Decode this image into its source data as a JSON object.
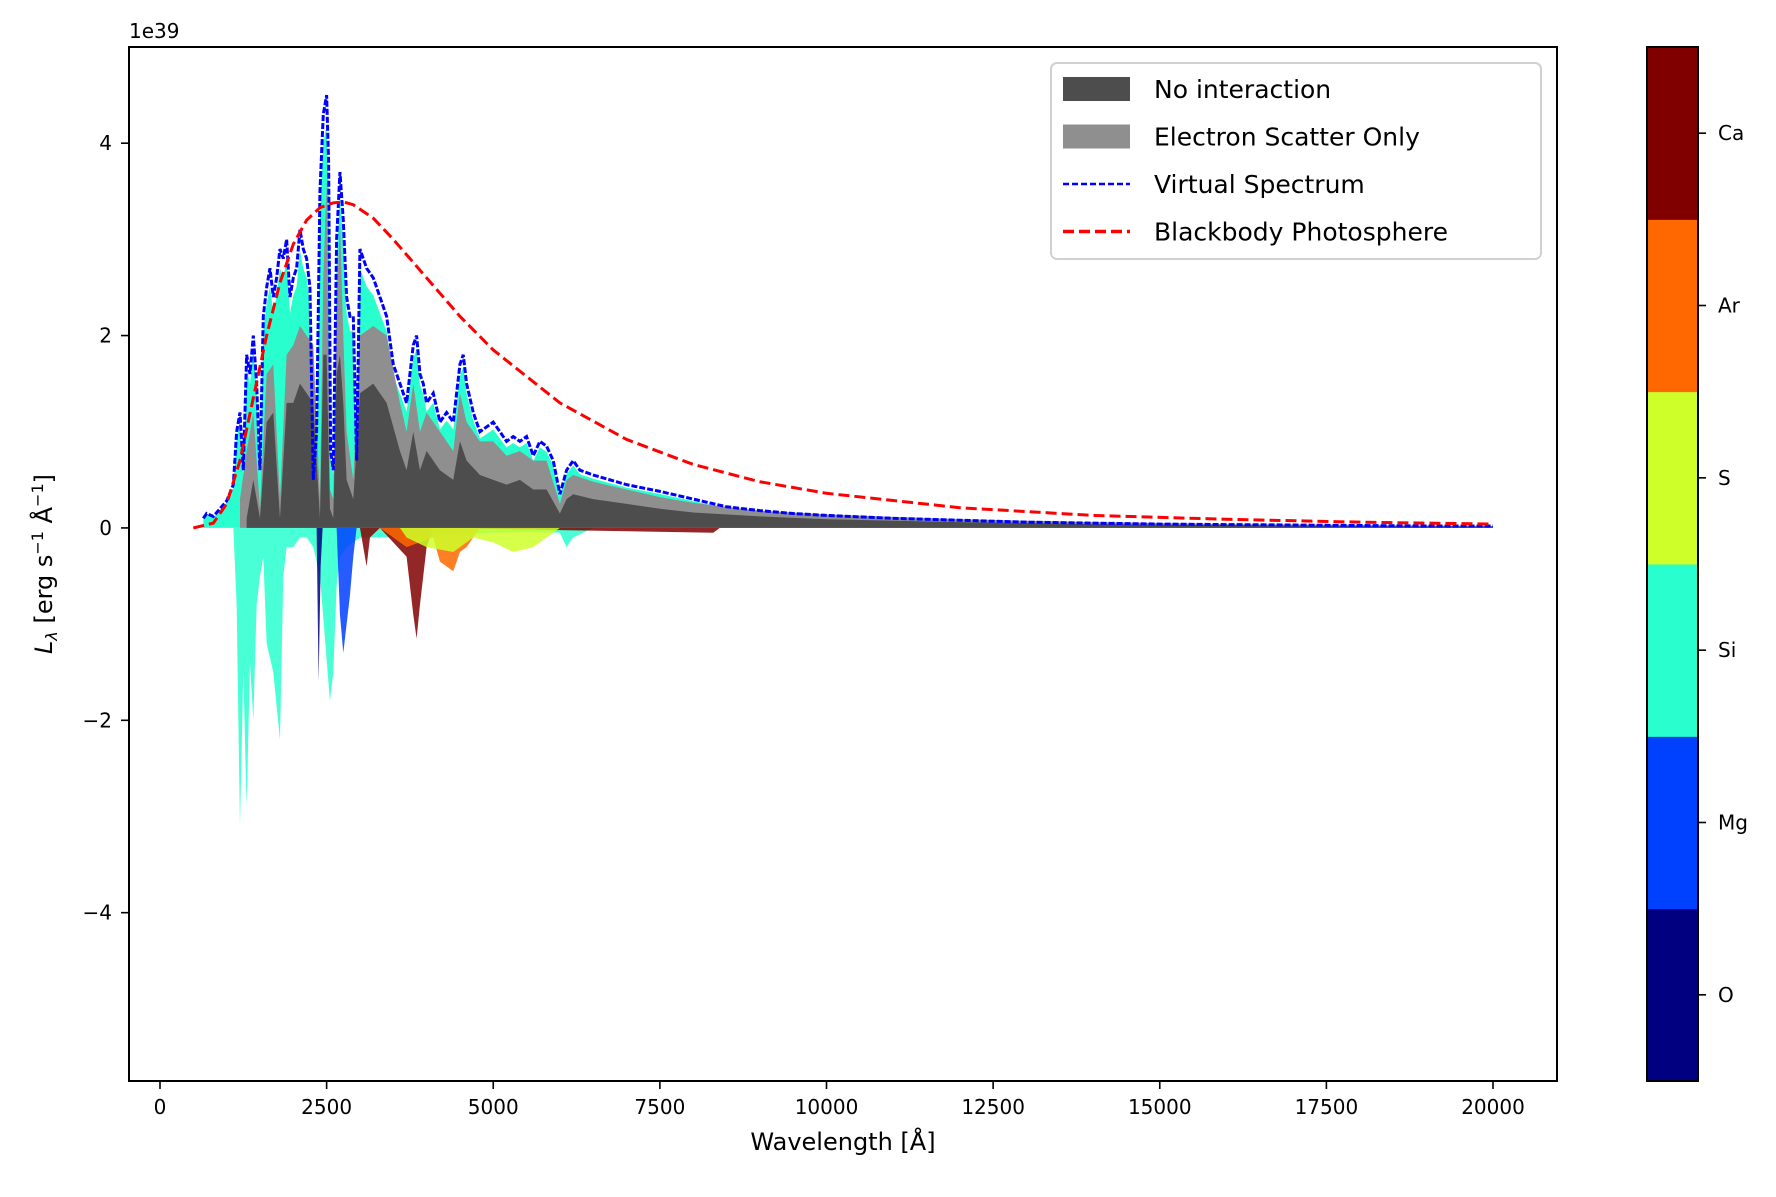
{
  "chart_data": {
    "type": "area",
    "title": "",
    "xlabel": "Wavelength [Å]",
    "ylabel": "L_λ [erg s⁻¹ Å⁻¹]",
    "offset_text": "1e39",
    "xlim": [
      -465,
      20960
    ],
    "ylim": [
      -5.75,
      5.0
    ],
    "xticks": [
      0,
      2500,
      5000,
      7500,
      10000,
      12500,
      15000,
      17500,
      20000
    ],
    "xtick_labels": [
      "0",
      "2500",
      "5000",
      "7500",
      "10000",
      "12500",
      "15000",
      "17500",
      "20000"
    ],
    "yticks": [
      4,
      2,
      0,
      -2,
      -4
    ],
    "ytick_labels": [
      "4",
      "2",
      "0",
      "−2",
      "−4"
    ],
    "grid": false,
    "legend_position": "upper right",
    "legend": [
      {
        "label": "No interaction",
        "kind": "patch",
        "color": "#4d4d4d"
      },
      {
        "label": "Electron Scatter Only",
        "kind": "patch",
        "color": "#8f8f8f"
      },
      {
        "label": "Virtual Spectrum",
        "kind": "line",
        "color": "#0000ff",
        "style": "dashed-thin"
      },
      {
        "label": "Blackbody Photosphere",
        "kind": "line",
        "color": "#ff0000",
        "style": "dashed-thick"
      }
    ],
    "colorbar": {
      "labels": [
        "O",
        "Mg",
        "Si",
        "S",
        "Ar",
        "Ca"
      ],
      "colors": [
        "#000080",
        "#0040ff",
        "#29ffce",
        "#ceff29",
        "#ff6800",
        "#800000"
      ]
    },
    "series": [
      {
        "name": "Virtual Spectrum",
        "x": [
          650,
          700,
          800,
          900,
          1000,
          1100,
          1150,
          1200,
          1250,
          1300,
          1350,
          1400,
          1450,
          1500,
          1550,
          1600,
          1650,
          1700,
          1750,
          1800,
          1850,
          1900,
          1950,
          2000,
          2050,
          2100,
          2150,
          2200,
          2250,
          2300,
          2350,
          2400,
          2450,
          2500,
          2530,
          2560,
          2600,
          2650,
          2700,
          2750,
          2800,
          2850,
          2900,
          2950,
          3000,
          3100,
          3200,
          3300,
          3400,
          3500,
          3600,
          3700,
          3800,
          3850,
          3900,
          3950,
          4000,
          4100,
          4200,
          4300,
          4400,
          4500,
          4550,
          4600,
          4700,
          4800,
          4900,
          5000,
          5100,
          5200,
          5300,
          5400,
          5500,
          5600,
          5700,
          5800,
          5900,
          6000,
          6100,
          6200,
          6300,
          6500,
          7000,
          7500,
          8000,
          8500,
          9000,
          9500,
          10000,
          11000,
          12000,
          13000,
          14000,
          15000,
          16000,
          17000,
          18000,
          19000,
          20000
        ],
        "values": [
          0.1,
          0.15,
          0.12,
          0.2,
          0.28,
          0.45,
          1.0,
          1.2,
          0.6,
          1.8,
          1.6,
          2.0,
          1.5,
          0.6,
          2.2,
          2.5,
          2.7,
          2.4,
          2.6,
          2.9,
          2.8,
          3.0,
          2.4,
          2.6,
          2.7,
          3.1,
          2.9,
          2.8,
          2.5,
          0.5,
          1.0,
          3.5,
          4.3,
          4.5,
          3.8,
          0.8,
          0.6,
          3.0,
          3.7,
          3.2,
          2.4,
          2.2,
          2.2,
          0.7,
          2.9,
          2.7,
          2.6,
          2.4,
          2.2,
          1.7,
          1.5,
          1.3,
          1.9,
          2.0,
          1.6,
          1.5,
          1.3,
          1.4,
          1.1,
          1.2,
          1.1,
          1.7,
          1.8,
          1.5,
          1.2,
          1.0,
          1.05,
          1.1,
          1.0,
          0.9,
          0.95,
          0.9,
          0.95,
          0.75,
          0.9,
          0.85,
          0.7,
          0.35,
          0.6,
          0.7,
          0.6,
          0.55,
          0.45,
          0.38,
          0.3,
          0.22,
          0.18,
          0.15,
          0.13,
          0.1,
          0.08,
          0.06,
          0.05,
          0.04,
          0.035,
          0.03,
          0.025,
          0.02,
          0.02
        ]
      },
      {
        "name": "Electron Scatter Only",
        "x": [
          1200,
          1300,
          1400,
          1500,
          1600,
          1700,
          1800,
          1900,
          2000,
          2100,
          2200,
          2300,
          2400,
          2450,
          2500,
          2550,
          2600,
          2650,
          2700,
          2750,
          2800,
          2900,
          3000,
          3200,
          3400,
          3600,
          3700,
          3800,
          3900,
          4000,
          4200,
          4400,
          4500,
          4600,
          4800,
          5000,
          5200,
          5400,
          5600,
          5800,
          6000,
          6100,
          6200,
          6500,
          7000,
          7500,
          8000,
          9000,
          10000,
          12000,
          14000,
          16000,
          18000,
          20000
        ],
        "values": [
          0.3,
          0.8,
          1.2,
          0.2,
          1.6,
          1.7,
          0.3,
          1.8,
          1.9,
          2.1,
          2.0,
          1.9,
          0.3,
          2.6,
          3.6,
          0.4,
          0.3,
          2.3,
          3.2,
          2.0,
          1.0,
          0.5,
          2.0,
          2.1,
          2.0,
          1.3,
          1.0,
          1.5,
          1.0,
          1.2,
          1.0,
          0.8,
          1.4,
          1.1,
          0.9,
          0.9,
          0.75,
          0.8,
          0.7,
          0.7,
          0.25,
          0.5,
          0.55,
          0.48,
          0.4,
          0.32,
          0.26,
          0.18,
          0.14,
          0.09,
          0.06,
          0.04,
          0.03,
          0.02
        ]
      },
      {
        "name": "No interaction",
        "x": [
          1300,
          1400,
          1500,
          1600,
          1700,
          1800,
          1900,
          2000,
          2100,
          2200,
          2300,
          2400,
          2450,
          2500,
          2550,
          2600,
          2650,
          2700,
          2750,
          2800,
          2900,
          3000,
          3200,
          3400,
          3600,
          3700,
          3800,
          3900,
          4000,
          4200,
          4400,
          4500,
          4600,
          4800,
          5000,
          5200,
          5400,
          5600,
          5800,
          6000,
          6100,
          6200,
          6500,
          7000,
          7500,
          8000,
          9000,
          10000,
          12000,
          14000,
          16000,
          18000,
          20000
        ],
        "values": [
          0.1,
          0.5,
          0.1,
          1.1,
          1.2,
          0.1,
          1.3,
          1.3,
          1.5,
          1.4,
          1.3,
          0.1,
          1.8,
          1.8,
          0.2,
          0.1,
          1.6,
          1.8,
          1.3,
          0.5,
          0.3,
          1.4,
          1.5,
          1.3,
          0.8,
          0.6,
          1.0,
          0.6,
          0.8,
          0.6,
          0.5,
          0.9,
          0.7,
          0.55,
          0.5,
          0.45,
          0.5,
          0.4,
          0.4,
          0.15,
          0.3,
          0.35,
          0.3,
          0.25,
          0.2,
          0.16,
          0.12,
          0.09,
          0.06,
          0.04,
          0.03,
          0.02,
          0.015
        ]
      },
      {
        "name": "Blackbody Photosphere",
        "x": [
          500,
          800,
          1000,
          1200,
          1400,
          1600,
          1800,
          2000,
          2200,
          2400,
          2600,
          2750,
          2900,
          3200,
          3500,
          4000,
          4500,
          5000,
          6000,
          7000,
          8000,
          9000,
          10000,
          12000,
          14000,
          16000,
          18000,
          20000
        ],
        "values": [
          0.0,
          0.05,
          0.25,
          0.7,
          1.35,
          2.0,
          2.55,
          2.95,
          3.2,
          3.33,
          3.38,
          3.39,
          3.36,
          3.22,
          3.0,
          2.6,
          2.2,
          1.85,
          1.3,
          0.92,
          0.66,
          0.48,
          0.36,
          0.21,
          0.13,
          0.09,
          0.06,
          0.04
        ]
      }
    ],
    "absorption_by_element": [
      {
        "element": "Si",
        "color": "#29ffce",
        "x": [
          1100,
          1150,
          1200,
          1250,
          1300,
          1350,
          1400,
          1450,
          1500,
          1550,
          1600,
          1700,
          1800,
          1850,
          1900,
          2000,
          2100,
          2200,
          2300,
          2400,
          2550,
          2600,
          2650,
          2700,
          2800,
          2900,
          3000,
          3200,
          3400,
          3600,
          4000,
          4500,
          5000,
          5500,
          6000,
          6100,
          6200,
          6500
        ],
        "values": [
          0,
          -0.8,
          -3.1,
          -1.5,
          -2.9,
          -1.4,
          -2.0,
          -0.8,
          -0.5,
          -0.3,
          -1.2,
          -1.5,
          -2.2,
          -0.5,
          -0.2,
          -0.2,
          -0.1,
          -0.1,
          -0.2,
          -0.5,
          -1.8,
          -1.5,
          -0.6,
          -0.3,
          -0.2,
          -0.15,
          -0.1,
          -0.1,
          -0.1,
          -0.1,
          -0.08,
          -0.06,
          -0.05,
          -0.04,
          -0.05,
          -0.2,
          -0.1,
          0
        ]
      },
      {
        "element": "O",
        "color": "#000080",
        "x": [
          2350,
          2380,
          2410,
          2440
        ],
        "values": [
          0,
          -1.6,
          -0.4,
          0
        ]
      },
      {
        "element": "Mg",
        "color": "#0040ff",
        "x": [
          2650,
          2700,
          2750,
          2800,
          2850,
          2900,
          2950
        ],
        "values": [
          0,
          -0.9,
          -1.3,
          -1.0,
          -0.7,
          -0.3,
          0
        ]
      },
      {
        "element": "Ca",
        "color": "#800000",
        "x": [
          3000,
          3100,
          3150,
          3300,
          3700,
          3800,
          3850,
          3900,
          3950,
          4000,
          4100,
          8300,
          8400
        ],
        "values": [
          0,
          -0.4,
          -0.1,
          0,
          -0.3,
          -0.9,
          -1.15,
          -0.8,
          -0.5,
          -0.2,
          0,
          -0.05,
          0
        ]
      },
      {
        "element": "Ar",
        "color": "#ff6800",
        "x": [
          3300,
          3500,
          3700,
          4100,
          4200,
          4400,
          4500,
          4600,
          4800
        ],
        "values": [
          0,
          -0.1,
          -0.2,
          -0.1,
          -0.35,
          -0.45,
          -0.25,
          -0.2,
          0
        ]
      },
      {
        "element": "S",
        "color": "#ceff29",
        "x": [
          3600,
          3700,
          4000,
          4400,
          4700,
          5000,
          5300,
          5600,
          5900,
          6000
        ],
        "values": [
          0,
          -0.1,
          -0.2,
          -0.25,
          -0.1,
          -0.15,
          -0.25,
          -0.2,
          -0.05,
          0
        ]
      }
    ]
  }
}
